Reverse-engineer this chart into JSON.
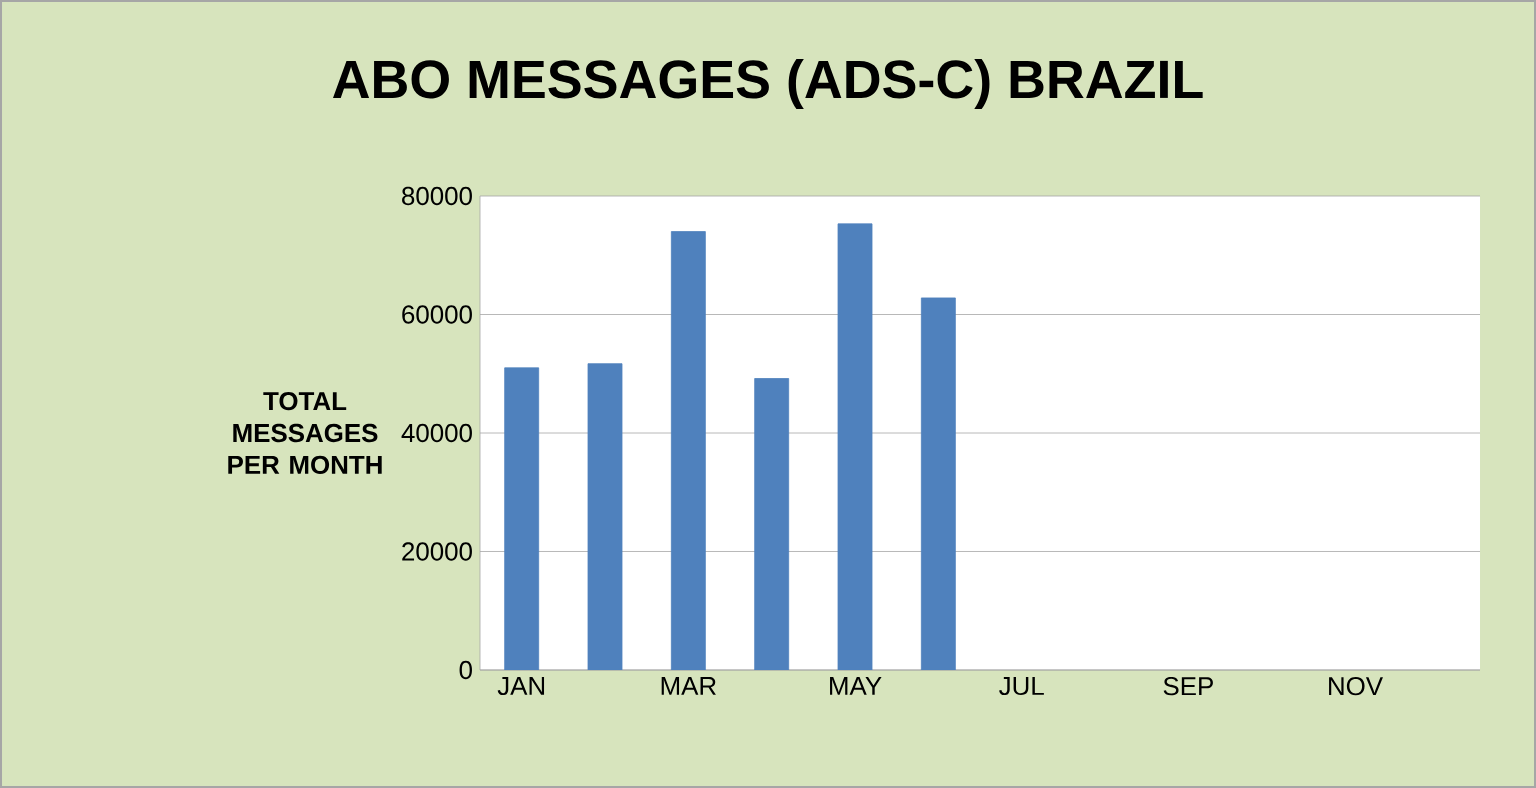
{
  "chart_data": {
    "type": "bar",
    "title": "ABO MESSAGES (ADS-C) BRAZIL",
    "ylabel": "TOTAL MESSAGES PER MONTH",
    "categories": [
      "JAN",
      null,
      "MAR",
      null,
      "MAY",
      null,
      "JUL",
      null,
      "SEP",
      null,
      "NOV",
      null
    ],
    "values": [
      51000,
      51700,
      74000,
      49200,
      75300,
      62800,
      null,
      null,
      null,
      null,
      null,
      null
    ],
    "color": "#4f81bd",
    "ylim": [
      0,
      80000
    ],
    "yticks": [
      0,
      20000,
      40000,
      60000,
      80000
    ],
    "grid": "y"
  }
}
